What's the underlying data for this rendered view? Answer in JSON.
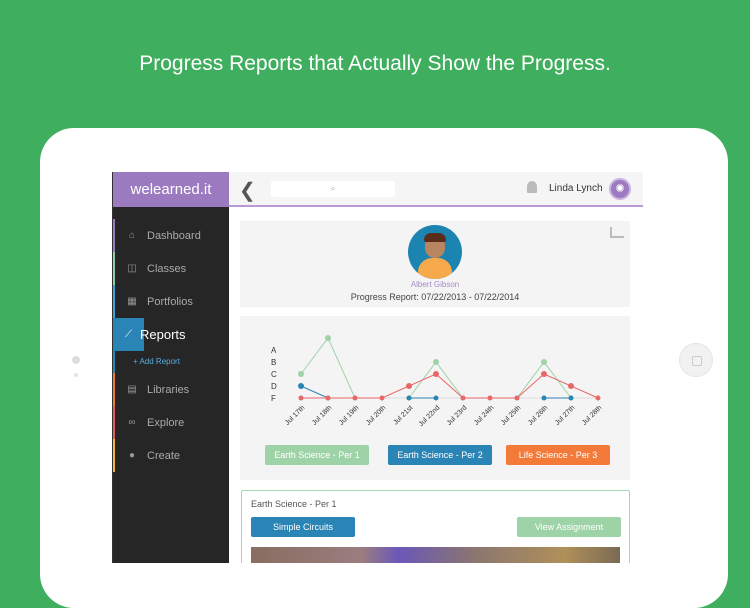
{
  "headline": "Progress Reports that Actually Show the Progress.",
  "app": {
    "logo": "welearned.it",
    "search_icon": "⌕",
    "user_name": "Linda Lynch",
    "user_avatar": "brain-icon"
  },
  "sidebar": {
    "items": [
      {
        "label": "Dashboard",
        "icon": "home-icon",
        "glyph": "⌂",
        "color": "#9c7abf"
      },
      {
        "label": "Classes",
        "icon": "book-icon",
        "glyph": "◫",
        "color": "#8fcf9e"
      },
      {
        "label": "Portfolios",
        "icon": "grid-icon",
        "glyph": "▦",
        "color": "#3fa3d6"
      },
      {
        "label": "Reports",
        "icon": "chart-icon",
        "glyph": "⟋",
        "color": "#2a84b5",
        "active": true
      },
      {
        "label": "Libraries",
        "icon": "library-icon",
        "glyph": "▤",
        "color": "#f07a35"
      },
      {
        "label": "Explore",
        "icon": "binoculars-icon",
        "glyph": "∞",
        "color": "#e35b5b"
      },
      {
        "label": "Create",
        "icon": "lightbulb-icon",
        "glyph": "●",
        "color": "#f0b63a"
      }
    ],
    "add_report": "+ Add Report"
  },
  "student": {
    "name": "Albert Gibson",
    "report_range": "Progress Report: 07/22/2013 - 07/22/2014"
  },
  "chart_data": {
    "type": "line",
    "x": [
      "Jul 17th",
      "Jul 18th",
      "Jul 19th",
      "Jul 20th",
      "Jul 21st",
      "Jul 22nd",
      "Jul 23rd",
      "Jul 24th",
      "Jul 25th",
      "Jul 26th",
      "Jul 27th",
      "Jul 28th"
    ],
    "y_ticks": [
      "F",
      "D",
      "C",
      "B",
      "A"
    ],
    "ylim": [
      0,
      5
    ],
    "series": [
      {
        "name": "Earth Science - Per 1",
        "color": "#9ed3a8",
        "values": [
          2,
          5,
          0,
          null,
          0,
          3,
          0,
          null,
          0,
          3,
          0,
          null
        ]
      },
      {
        "name": "Earth Science - Per 2",
        "color": "#2a84b5",
        "values": [
          1,
          0,
          null,
          null,
          0,
          0,
          null,
          null,
          null,
          0,
          0,
          null
        ]
      },
      {
        "name": "Life Science - Per 3",
        "color": "#e8686a",
        "legend_color": "#f47a3a",
        "values": [
          0,
          0,
          0,
          0,
          1,
          2,
          0,
          0,
          0,
          2,
          1,
          0
        ]
      }
    ]
  },
  "detail": {
    "class": "Earth Science - Per 1",
    "assignment": "Simple Circuits",
    "view_button": "View Assignment"
  }
}
